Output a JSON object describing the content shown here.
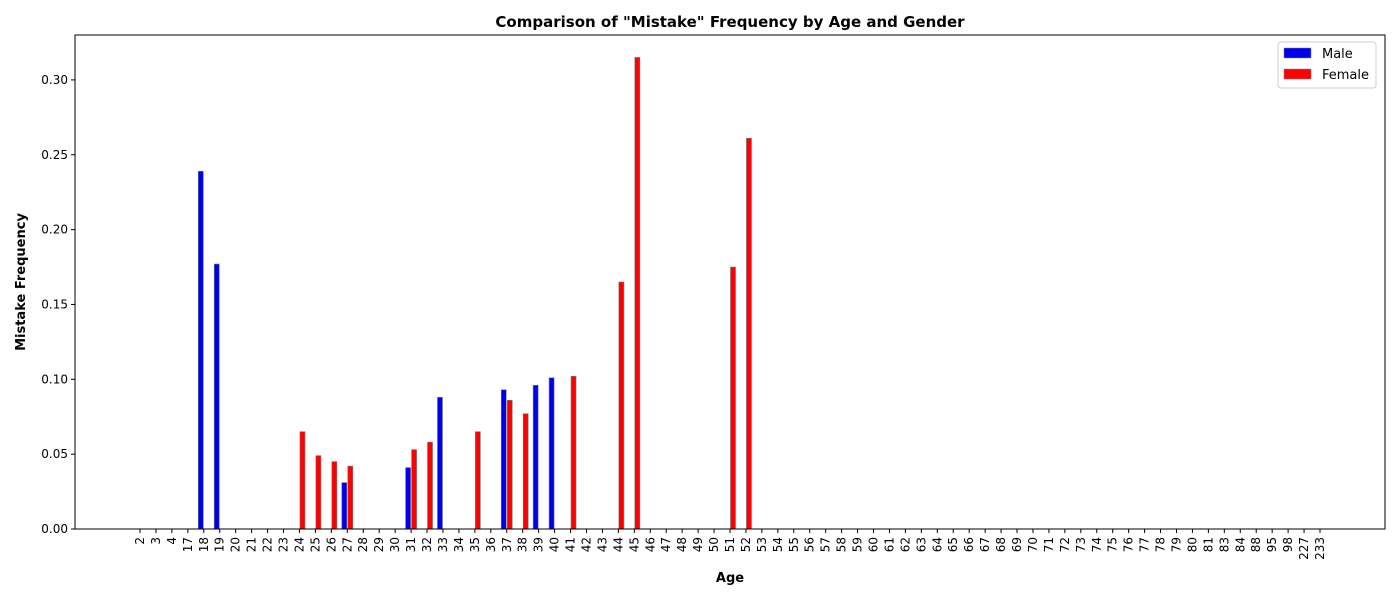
{
  "chart_data": {
    "type": "bar",
    "title": "Comparison of \"Mistake\" Frequency by Age and Gender",
    "xlabel": "Age",
    "ylabel": "Mistake Frequency",
    "ylim": [
      0,
      0.33
    ],
    "yticks": [
      "0.00",
      "0.05",
      "0.10",
      "0.15",
      "0.20",
      "0.25",
      "0.30"
    ],
    "grid": false,
    "legend_position": "top-right",
    "categories": [
      "2",
      "3",
      "4",
      "17",
      "18",
      "19",
      "20",
      "21",
      "22",
      "23",
      "24",
      "25",
      "26",
      "27",
      "28",
      "29",
      "30",
      "31",
      "32",
      "33",
      "34",
      "35",
      "36",
      "37",
      "38",
      "39",
      "40",
      "41",
      "42",
      "43",
      "44",
      "45",
      "46",
      "47",
      "48",
      "49",
      "50",
      "51",
      "52",
      "53",
      "54",
      "55",
      "56",
      "57",
      "58",
      "59",
      "60",
      "61",
      "62",
      "63",
      "64",
      "65",
      "66",
      "67",
      "68",
      "69",
      "70",
      "71",
      "72",
      "73",
      "74",
      "75",
      "76",
      "77",
      "78",
      "79",
      "80",
      "81",
      "83",
      "84",
      "88",
      "95",
      "98",
      "227",
      "233"
    ],
    "series": [
      {
        "name": "Male",
        "color": "#0000ee",
        "values": [
          0,
          0,
          0,
          0,
          0.239,
          0.177,
          0,
          0,
          0,
          0,
          0,
          0,
          0,
          0.031,
          0,
          0,
          0,
          0.041,
          0,
          0.088,
          0,
          0,
          0,
          0.093,
          0,
          0.096,
          0.101,
          0,
          0,
          0,
          0,
          0,
          0,
          0,
          0,
          0,
          0,
          0,
          0,
          0,
          0,
          0,
          0,
          0,
          0,
          0,
          0,
          0,
          0,
          0,
          0,
          0,
          0,
          0,
          0,
          0,
          0,
          0,
          0,
          0,
          0,
          0,
          0,
          0,
          0,
          0,
          0,
          0,
          0,
          0,
          0,
          0,
          0,
          0,
          0
        ]
      },
      {
        "name": "Female",
        "color": "#ff0000",
        "values": [
          0,
          0,
          0,
          0,
          0,
          0,
          0,
          0,
          0,
          0,
          0.065,
          0.049,
          0.045,
          0.042,
          0,
          0,
          0,
          0.053,
          0.058,
          0,
          0,
          0.065,
          0,
          0.086,
          0.077,
          0,
          0,
          0.102,
          0,
          0,
          0.165,
          0.315,
          0,
          0,
          0,
          0,
          0,
          0.175,
          0.261,
          0,
          0,
          0,
          0,
          0,
          0,
          0,
          0,
          0,
          0,
          0,
          0,
          0,
          0,
          0,
          0,
          0,
          0,
          0,
          0,
          0,
          0,
          0,
          0,
          0,
          0,
          0,
          0,
          0,
          0,
          0,
          0,
          0,
          0,
          0,
          0
        ]
      }
    ]
  }
}
